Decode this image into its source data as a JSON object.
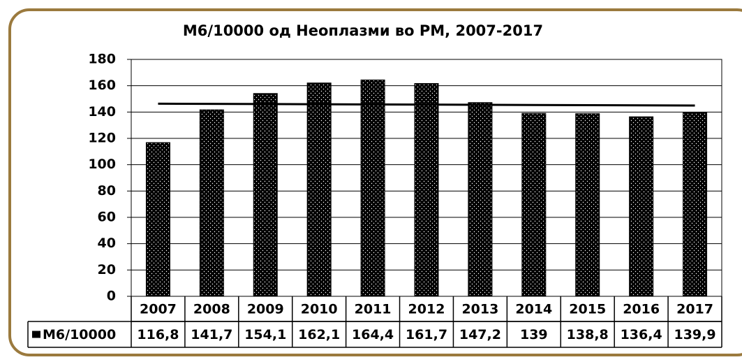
{
  "chart_data": {
    "type": "bar",
    "title": "М6/10000 од Неоплазми во РМ, 2007-2017",
    "categories": [
      "2007",
      "2008",
      "2009",
      "2010",
      "2011",
      "2012",
      "2013",
      "2014",
      "2015",
      "2016",
      "2017"
    ],
    "series": [
      {
        "name": "М6/10000",
        "color": "#000000",
        "values": [
          116.8,
          141.7,
          154.1,
          162.1,
          164.4,
          161.7,
          147.2,
          139,
          138.8,
          136.4,
          139.9
        ],
        "value_labels": [
          "116,8",
          "141,7",
          "154,1",
          "162,1",
          "164,4",
          "161,7",
          "147,2",
          "139",
          "138,8",
          "136,4",
          "139,9"
        ]
      }
    ],
    "ylim": [
      0,
      180
    ],
    "yticks": [
      0,
      20,
      40,
      60,
      80,
      100,
      120,
      140,
      160,
      180
    ],
    "grid": true,
    "trendline": "linear",
    "data_table": true
  }
}
